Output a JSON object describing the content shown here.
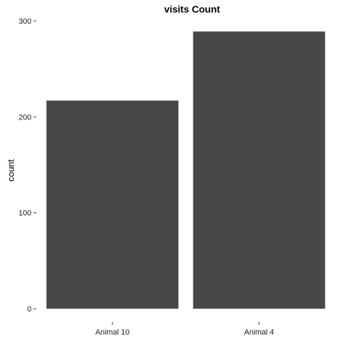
{
  "chart_data": {
    "type": "bar",
    "title": "visits Count",
    "xlabel": "",
    "ylabel": "count",
    "categories": [
      "Animal 10",
      "Animal 4"
    ],
    "values": [
      217,
      289
    ],
    "ylim": [
      0,
      300
    ],
    "yticks": [
      0,
      100,
      200,
      300
    ],
    "bar_color": "#474747",
    "grid": false
  }
}
